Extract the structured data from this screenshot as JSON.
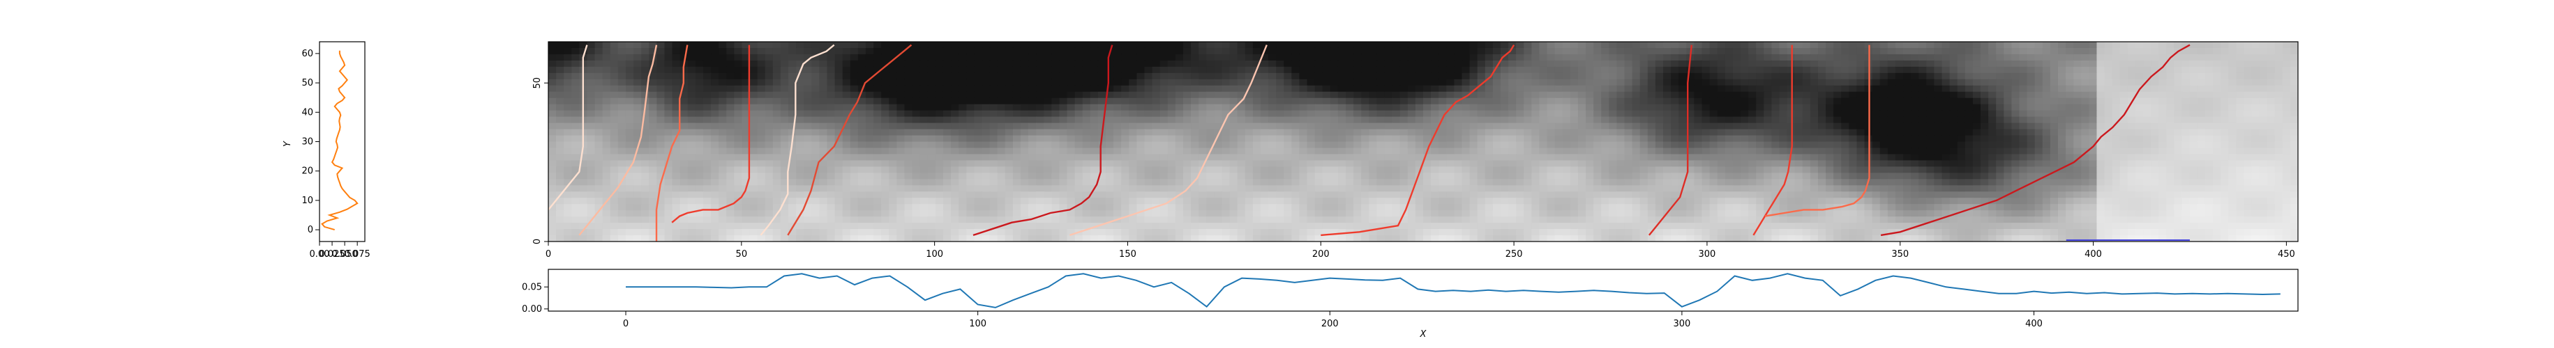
{
  "chart_data": [
    {
      "id": "left-profile",
      "type": "line",
      "ylabel": "Y",
      "xlim": [
        0.0,
        0.09
      ],
      "ylim": [
        -4,
        64
      ],
      "xticks": [
        0.0,
        0.025,
        0.05,
        0.075
      ],
      "xtick_labels": [
        "0.00",
        "0.025",
        "0.050",
        "0.075"
      ],
      "yticks": [
        0,
        10,
        20,
        30,
        40,
        50,
        60
      ],
      "series": [
        {
          "color": "#ff7f0e",
          "y": [
            0,
            1,
            2,
            3,
            4,
            5,
            6,
            7,
            8,
            9,
            10,
            11,
            12,
            13,
            14,
            15,
            16,
            17,
            18,
            19,
            20,
            21,
            22,
            23,
            24,
            25,
            26,
            27,
            28,
            29,
            30,
            31,
            32,
            33,
            34,
            35,
            36,
            37,
            38,
            39,
            40,
            41,
            42,
            43,
            44,
            45,
            46,
            47,
            48,
            49,
            50,
            51,
            52,
            53,
            54,
            55,
            56,
            57,
            58,
            59,
            60,
            61
          ],
          "x": [
            0.03,
            0.01,
            0.005,
            0.015,
            0.035,
            0.02,
            0.04,
            0.055,
            0.065,
            0.075,
            0.07,
            0.06,
            0.055,
            0.05,
            0.045,
            0.042,
            0.04,
            0.038,
            0.036,
            0.035,
            0.04,
            0.045,
            0.03,
            0.025,
            0.028,
            0.03,
            0.032,
            0.034,
            0.036,
            0.035,
            0.033,
            0.034,
            0.036,
            0.038,
            0.04,
            0.041,
            0.04,
            0.039,
            0.04,
            0.042,
            0.04,
            0.035,
            0.03,
            0.035,
            0.045,
            0.05,
            0.045,
            0.04,
            0.038,
            0.045,
            0.05,
            0.055,
            0.05,
            0.045,
            0.04,
            0.045,
            0.05,
            0.048,
            0.045,
            0.042,
            0.04,
            0.04
          ]
        }
      ]
    },
    {
      "id": "heatmap-panel",
      "type": "heatmap",
      "xlim": [
        0,
        453
      ],
      "ylim": [
        0,
        63
      ],
      "xticks": [
        0,
        50,
        100,
        150,
        200,
        250,
        300,
        350,
        400,
        450
      ],
      "yticks": [
        0,
        50
      ],
      "colormap": "greys",
      "warping_paths": [
        {
          "x": [
            0,
            2,
            4,
            6,
            8,
            9,
            9,
            9,
            9,
            10
          ],
          "y": [
            10,
            13,
            16,
            19,
            22,
            30,
            40,
            50,
            58,
            62
          ]
        },
        {
          "x": [
            8,
            10,
            12,
            14,
            16,
            18,
            22,
            24,
            25,
            26,
            27,
            28
          ],
          "y": [
            2,
            5,
            8,
            11,
            14,
            17,
            25,
            33,
            42,
            52,
            56,
            62
          ]
        },
        {
          "x": [
            28,
            28,
            29,
            30,
            32,
            34,
            34,
            35,
            35,
            36
          ],
          "y": [
            0,
            10,
            18,
            22,
            30,
            35,
            45,
            50,
            55,
            62
          ]
        },
        {
          "x": [
            32,
            34,
            36,
            40,
            44,
            48,
            50,
            51,
            52,
            52,
            52,
            52,
            52
          ],
          "y": [
            6,
            8,
            9,
            10,
            10,
            12,
            14,
            16,
            20,
            30,
            40,
            50,
            62
          ]
        },
        {
          "x": [
            55,
            57,
            60,
            62,
            62,
            63,
            64,
            64,
            66,
            68,
            72,
            74
          ],
          "y": [
            2,
            5,
            10,
            15,
            22,
            30,
            40,
            50,
            56,
            58,
            60,
            62
          ]
        },
        {
          "x": [
            62,
            64,
            66,
            68,
            70,
            74,
            76,
            78,
            80,
            82,
            84,
            86,
            88,
            90,
            92,
            94
          ],
          "y": [
            2,
            6,
            10,
            16,
            25,
            30,
            35,
            40,
            44,
            50,
            52,
            54,
            56,
            58,
            60,
            62
          ]
        },
        {
          "x": [
            110,
            115,
            120,
            125,
            130,
            135,
            138,
            140,
            142,
            143,
            143,
            144,
            145,
            145,
            146
          ],
          "y": [
            2,
            4,
            6,
            7,
            9,
            10,
            12,
            14,
            18,
            22,
            30,
            40,
            50,
            58,
            62
          ]
        },
        {
          "x": [
            135,
            140,
            145,
            150,
            155,
            160,
            165,
            168,
            170,
            172,
            174,
            176,
            180,
            182,
            184,
            186
          ],
          "y": [
            2,
            4,
            6,
            8,
            10,
            12,
            16,
            20,
            25,
            30,
            35,
            40,
            45,
            50,
            56,
            62
          ]
        },
        {
          "x": [
            200,
            210,
            220,
            222,
            225,
            228,
            230,
            232,
            235,
            238,
            240,
            242,
            244,
            245,
            246,
            247,
            248,
            249,
            250
          ],
          "y": [
            2,
            3,
            5,
            10,
            20,
            30,
            35,
            40,
            44,
            46,
            48,
            50,
            52,
            54,
            56,
            58,
            59,
            60,
            62
          ]
        },
        {
          "x": [
            285,
            287,
            289,
            291,
            293,
            294,
            295,
            295,
            295,
            295,
            296
          ],
          "y": [
            2,
            5,
            8,
            11,
            14,
            18,
            22,
            30,
            40,
            50,
            62
          ]
        },
        {
          "x": [
            312,
            314,
            316,
            318,
            320,
            321,
            322,
            322,
            322,
            322
          ],
          "y": [
            2,
            6,
            10,
            14,
            18,
            22,
            30,
            40,
            50,
            62
          ]
        },
        {
          "x": [
            315,
            320,
            325,
            330,
            335,
            338,
            340,
            341,
            342,
            342,
            342,
            342
          ],
          "y": [
            8,
            9,
            10,
            10,
            11,
            12,
            14,
            16,
            20,
            30,
            40,
            62
          ]
        },
        {
          "x": [
            345,
            350,
            355,
            360,
            365,
            370,
            375,
            380,
            385,
            390,
            395,
            398,
            400,
            402,
            405,
            408,
            410,
            412,
            415,
            418,
            420,
            422,
            425
          ],
          "y": [
            2,
            3,
            5,
            7,
            9,
            11,
            13,
            16,
            19,
            22,
            25,
            28,
            30,
            33,
            36,
            40,
            44,
            48,
            52,
            55,
            58,
            60,
            62
          ]
        }
      ],
      "path_colors": [
        "#fde0d0",
        "#fcbba1",
        "#fb6a4a",
        "#ef3b2c",
        "#fde0d0",
        "#e34a33",
        "#cb181d",
        "#fcc5b0",
        "#ef3b2c",
        "#de2d26",
        "#ef3b2c",
        "#fb6a4a",
        "#cb181d"
      ],
      "highlight_segment": {
        "x": [
          393,
          425
        ],
        "y": 0,
        "color": "#4444dd"
      }
    },
    {
      "id": "bottom-signal",
      "type": "line",
      "xlabel": "X",
      "xlim": [
        -22,
        475
      ],
      "ylim": [
        -0.005,
        0.09
      ],
      "xticks": [
        0,
        100,
        200,
        300,
        400
      ],
      "yticks": [
        0.0,
        0.05
      ],
      "ytick_labels": [
        "0.00",
        "0.05"
      ],
      "series": [
        {
          "color": "#1f77b4",
          "x": [
            0,
            5,
            10,
            15,
            20,
            25,
            30,
            35,
            40,
            45,
            50,
            55,
            60,
            65,
            70,
            75,
            80,
            85,
            90,
            95,
            100,
            105,
            110,
            115,
            120,
            125,
            130,
            135,
            140,
            145,
            150,
            155,
            160,
            165,
            170,
            175,
            180,
            185,
            190,
            195,
            200,
            205,
            210,
            215,
            220,
            225,
            230,
            235,
            240,
            245,
            250,
            255,
            260,
            265,
            270,
            275,
            280,
            285,
            290,
            295,
            300,
            305,
            310,
            315,
            320,
            325,
            330,
            335,
            340,
            345,
            350,
            355,
            360,
            365,
            370,
            375,
            380,
            385,
            390,
            395,
            400,
            405,
            410,
            415,
            420,
            425,
            430,
            435,
            440,
            445,
            450,
            455,
            460,
            465,
            470
          ],
          "y": [
            0.05,
            0.05,
            0.05,
            0.05,
            0.05,
            0.049,
            0.048,
            0.05,
            0.05,
            0.075,
            0.08,
            0.07,
            0.075,
            0.055,
            0.07,
            0.075,
            0.05,
            0.02,
            0.035,
            0.045,
            0.01,
            0.003,
            0.02,
            0.035,
            0.05,
            0.075,
            0.08,
            0.07,
            0.075,
            0.065,
            0.05,
            0.06,
            0.035,
            0.005,
            0.05,
            0.07,
            0.068,
            0.065,
            0.06,
            0.065,
            0.07,
            0.068,
            0.066,
            0.065,
            0.07,
            0.045,
            0.04,
            0.042,
            0.04,
            0.043,
            0.04,
            0.042,
            0.04,
            0.038,
            0.04,
            0.042,
            0.04,
            0.037,
            0.035,
            0.036,
            0.005,
            0.02,
            0.04,
            0.075,
            0.065,
            0.07,
            0.08,
            0.07,
            0.065,
            0.03,
            0.045,
            0.065,
            0.075,
            0.07,
            0.06,
            0.05,
            0.045,
            0.04,
            0.035,
            0.035,
            0.04,
            0.036,
            0.038,
            0.035,
            0.037,
            0.034,
            0.035,
            0.036,
            0.034,
            0.035,
            0.034,
            0.035,
            0.034,
            0.033,
            0.034
          ]
        }
      ]
    }
  ]
}
